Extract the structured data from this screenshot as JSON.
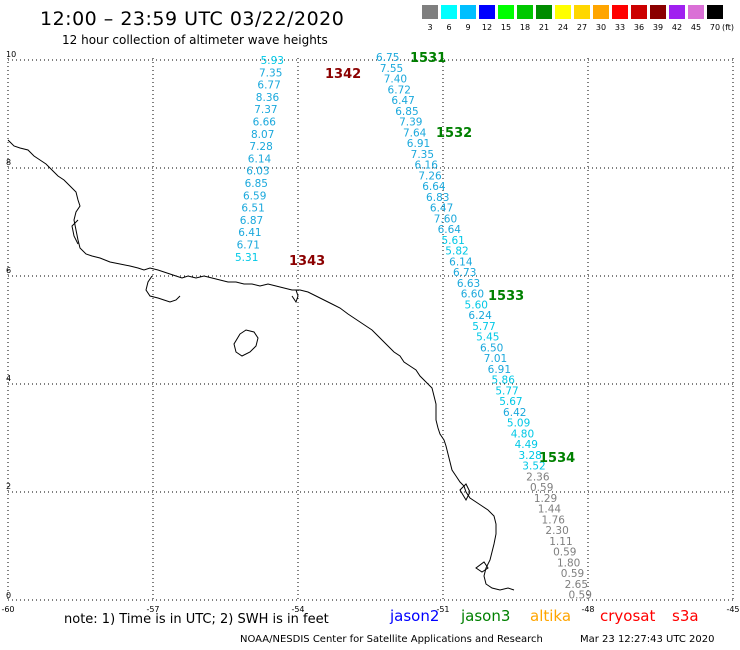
{
  "title": "12:00 – 23:59 UTC 03/22/2020",
  "subtitle": "12 hour collection of altimeter wave heights",
  "legend": {
    "unit": "(ft)",
    "items": [
      {
        "label": "3",
        "color": "#7f7f7f"
      },
      {
        "label": "6",
        "color": "#00ffff"
      },
      {
        "label": "9",
        "color": "#00bfff"
      },
      {
        "label": "12",
        "color": "#0000ff"
      },
      {
        "label": "15",
        "color": "#00ff00"
      },
      {
        "label": "18",
        "color": "#00c800"
      },
      {
        "label": "21",
        "color": "#008c00"
      },
      {
        "label": "24",
        "color": "#ffff00"
      },
      {
        "label": "27",
        "color": "#ffd700"
      },
      {
        "label": "30",
        "color": "#ffa500"
      },
      {
        "label": "33",
        "color": "#ff0000"
      },
      {
        "label": "36",
        "color": "#cc0000"
      },
      {
        "label": "39",
        "color": "#8b0000"
      },
      {
        "label": "42",
        "color": "#a020f0"
      },
      {
        "label": "45",
        "color": "#da70d6"
      },
      {
        "label": "70",
        "color": "#000000"
      }
    ]
  },
  "axes": {
    "x_ticks": [
      "-60",
      "-57",
      "-54",
      "-51",
      "-48",
      "-45"
    ],
    "y_ticks": [
      "0",
      "2",
      "4",
      "6",
      "8",
      "10"
    ]
  },
  "pass_labels": [
    {
      "label": "1531",
      "color": "#008000"
    },
    {
      "label": "1342",
      "color": "#8b0000"
    },
    {
      "label": "1532",
      "color": "#008000"
    },
    {
      "label": "1343",
      "color": "#8b0000"
    },
    {
      "label": "1533",
      "color": "#008000"
    },
    {
      "label": "1534",
      "color": "#008000"
    }
  ],
  "track_a": [
    "5.93",
    "7.35",
    "6.77",
    "8.36",
    "7.37",
    "6.66",
    "8.07",
    "7.28",
    "6.14",
    "6.03",
    "6.85",
    "6.59",
    "6.51",
    "6.87",
    "6.41",
    "6.71",
    "5.31"
  ],
  "track_b": [
    "6.75",
    "7.55",
    "7.40",
    "6.72",
    "6.47",
    "6.85",
    "7.39",
    "7.64",
    "6.91",
    "7.35",
    "6.16",
    "7.26",
    "6.64",
    "6.83",
    "6.47",
    "7.60",
    "6.64",
    "5.61",
    "5.82",
    "6.14",
    "6.73",
    "6.63",
    "6.60",
    "5.60",
    "6.24",
    "5.77",
    "5.45",
    "6.50",
    "7.01",
    "6.91",
    "5.86",
    "5.77",
    "5.67",
    "6.42",
    "5.09",
    "4.80",
    "4.49",
    "3.28",
    "3.52",
    "2.36",
    "0.59",
    "1.29",
    "1.44",
    "1.76",
    "2.30",
    "1.11",
    "0.59",
    "1.80",
    "0.59",
    "2.65",
    "0.59"
  ],
  "note": "note:  1) Time is in UTC;  2) SWH is in feet",
  "satellites": [
    {
      "label": "jason2",
      "color": "#0000ff"
    },
    {
      "label": "jason3",
      "color": "#008000"
    },
    {
      "label": "altika",
      "color": "#ffa500"
    },
    {
      "label": "cryosat",
      "color": "#ff0000"
    },
    {
      "label": "s3a",
      "color": "#ff0000"
    }
  ],
  "footer": "NOAA/NESDIS Center for Satellite Applications and Research",
  "timestamp": "Mar 23 12:27:43 UTC 2020"
}
